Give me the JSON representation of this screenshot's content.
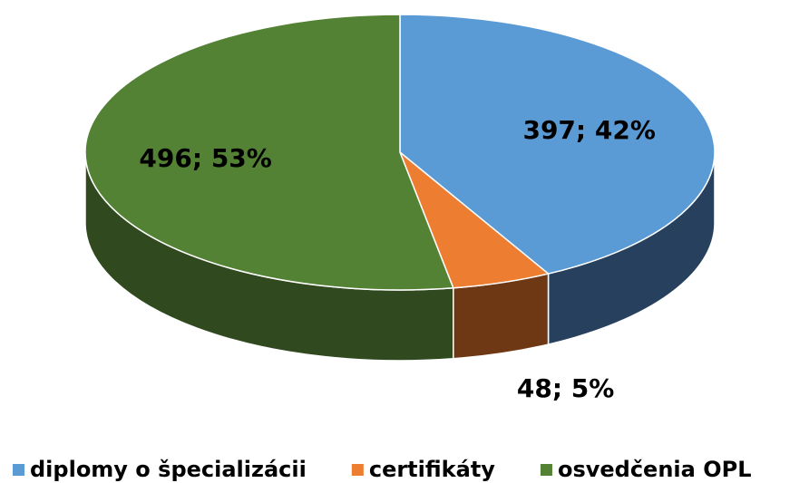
{
  "chart_data": {
    "type": "pie3d",
    "categories": [
      "diplomy o špecializácii",
      "certifikáty",
      "osvedčenia OPL"
    ],
    "values": [
      397,
      48,
      496
    ],
    "value_labels": [
      "397; 42%",
      "48; 5%",
      "496; 53%"
    ],
    "colors": [
      "#5b9bd5",
      "#ed7d31",
      "#548235"
    ],
    "side_colors": [
      "#26405e",
      "#6e3814",
      "#30491e"
    ],
    "legend": "bottom"
  }
}
